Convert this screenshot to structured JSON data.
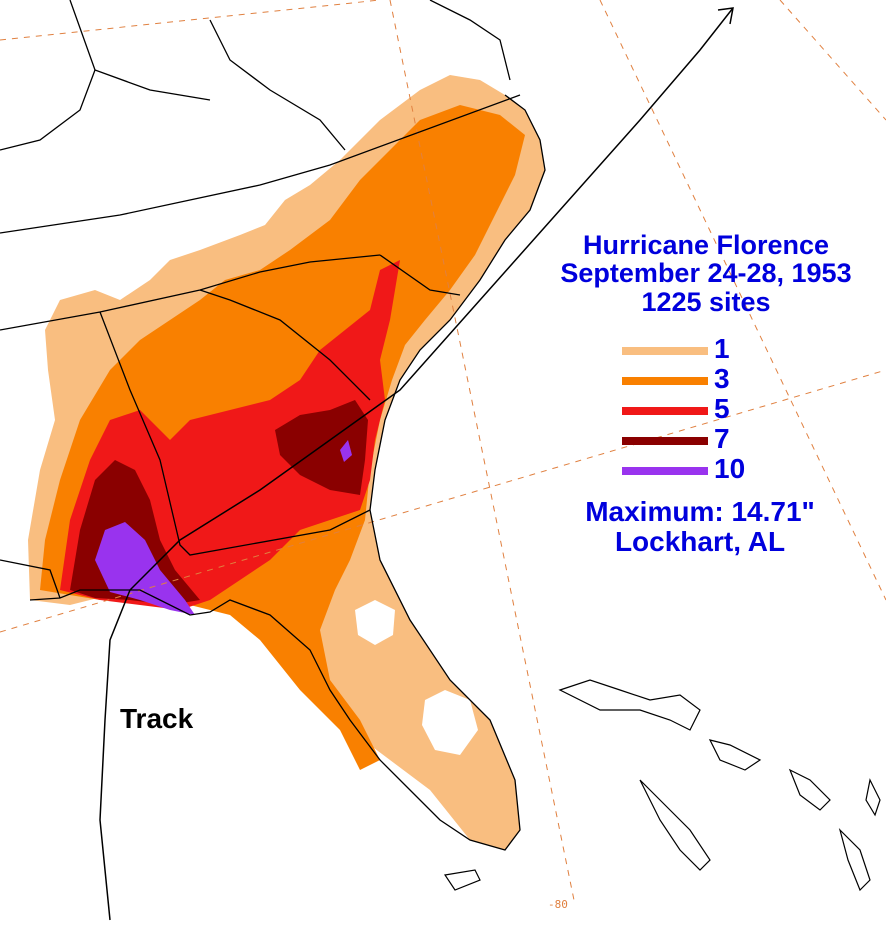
{
  "title": {
    "line1": "Hurricane Florence",
    "line2": "September 24-28, 1953",
    "line3": "1225 sites"
  },
  "legend": {
    "items": [
      {
        "label": "1",
        "color": "#f9be80"
      },
      {
        "label": "3",
        "color": "#f98000"
      },
      {
        "label": "5",
        "color": "#f01818"
      },
      {
        "label": "7",
        "color": "#8a0000"
      },
      {
        "label": "10",
        "color": "#9933ee"
      }
    ]
  },
  "maximum": {
    "line1": "Maximum:  14.71\"",
    "line2": "Lockhart, AL"
  },
  "track_label": "Track",
  "lon_label": "-80",
  "colors": {
    "text": "#0000dd",
    "gridline": "#e08040",
    "border": "#000000",
    "background": "#ffffff"
  }
}
